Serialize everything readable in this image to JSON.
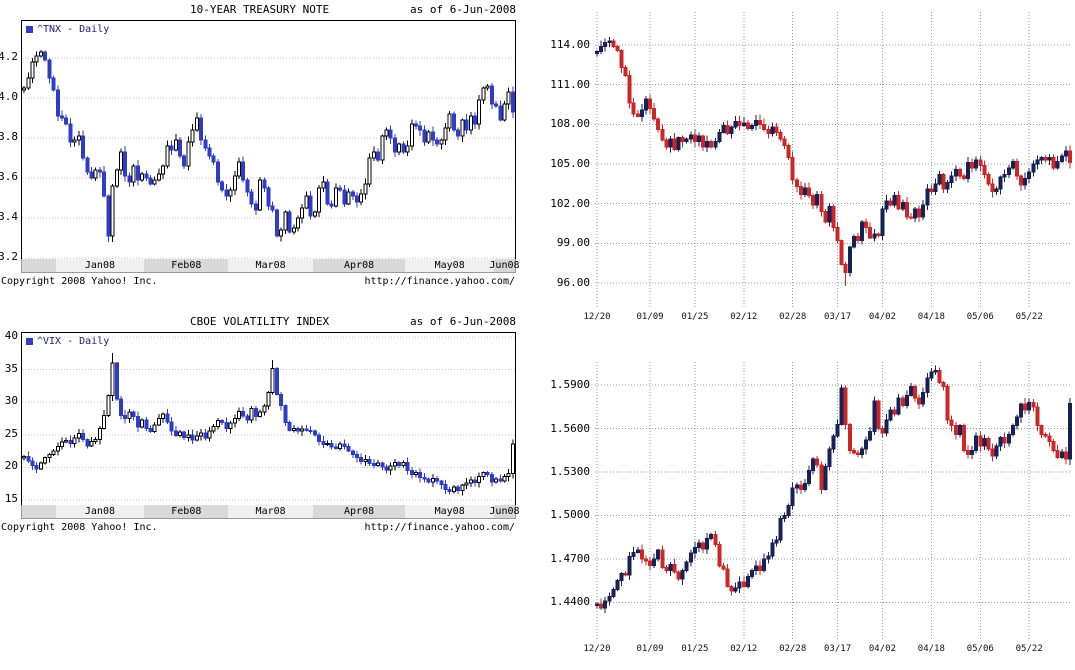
{
  "page": {
    "background": "#ffffff"
  },
  "chart_data": [
    {
      "name": "treasury-note-chart",
      "type": "candlestick",
      "title": "10-YEAR TREASURY NOTE",
      "as_of": "as of 6-Jun-2008",
      "legend": "^TNX - Daily",
      "copyright": "Copyright 2008 Yahoo! Inc.",
      "url": "http://finance.yahoo.com/",
      "hollow_up": true,
      "ylim": [
        3.19,
        4.385
      ],
      "yticks": [
        {
          "v": 4.2,
          "label": "4.2"
        },
        {
          "v": 4.0,
          "label": "4.0"
        },
        {
          "v": 3.8,
          "label": "3.8"
        },
        {
          "v": 3.6,
          "label": "3.6"
        },
        {
          "v": 3.4,
          "label": "3.4"
        },
        {
          "v": 3.2,
          "label": "3.2"
        }
      ],
      "months": [
        {
          "label": "",
          "len": 8
        },
        {
          "label": "Jan08",
          "len": 21
        },
        {
          "label": "Feb08",
          "len": 20
        },
        {
          "label": "Mar08",
          "len": 20
        },
        {
          "label": "Apr08",
          "len": 22
        },
        {
          "label": "May08",
          "len": 21
        },
        {
          "label": "Jun08",
          "len": 5
        }
      ],
      "wick": 0.03,
      "wick_overrides": [
        {
          "i": 20,
          "low": 3.28
        }
      ],
      "colors": {
        "up": "#ffffff",
        "down": "#2e3cc8",
        "grid": "#c9c9c9",
        "legend_square": "#2e3cc8"
      },
      "closes": [
        4.05,
        4.1,
        4.18,
        4.21,
        4.23,
        4.19,
        4.1,
        4.04,
        3.91,
        3.9,
        3.87,
        3.78,
        3.79,
        3.81,
        3.7,
        3.63,
        3.6,
        3.64,
        3.63,
        3.51,
        3.31,
        3.56,
        3.64,
        3.73,
        3.61,
        3.58,
        3.66,
        3.59,
        3.62,
        3.6,
        3.57,
        3.59,
        3.62,
        3.66,
        3.76,
        3.74,
        3.79,
        3.71,
        3.66,
        3.78,
        3.84,
        3.9,
        3.79,
        3.75,
        3.71,
        3.68,
        3.58,
        3.54,
        3.51,
        3.54,
        3.61,
        3.68,
        3.59,
        3.53,
        3.47,
        3.44,
        3.59,
        3.55,
        3.46,
        3.44,
        3.31,
        3.34,
        3.43,
        3.33,
        3.35,
        3.4,
        3.45,
        3.51,
        3.41,
        3.43,
        3.55,
        3.58,
        3.47,
        3.46,
        3.55,
        3.54,
        3.47,
        3.53,
        3.51,
        3.48,
        3.52,
        3.57,
        3.7,
        3.73,
        3.69,
        3.81,
        3.84,
        3.8,
        3.73,
        3.77,
        3.73,
        3.76,
        3.87,
        3.86,
        3.84,
        3.78,
        3.83,
        3.79,
        3.77,
        3.79,
        3.85,
        3.92,
        3.84,
        3.81,
        3.89,
        3.84,
        3.91,
        3.87,
        3.99,
        4.05,
        4.06,
        3.97,
        3.96,
        3.89,
        3.97,
        4.03,
        3.93
      ]
    },
    {
      "name": "vix-chart",
      "type": "candlestick",
      "title": "CBOE VOLATILITY INDEX",
      "as_of": "as of 6-Jun-2008",
      "legend": "^VIX - Daily",
      "copyright": "Copyright 2008 Yahoo! Inc.",
      "url": "http://finance.yahoo.com/",
      "hollow_up": true,
      "ylim": [
        14.1,
        40.6
      ],
      "yticks": [
        {
          "v": 40,
          "label": "40"
        },
        {
          "v": 35,
          "label": "35"
        },
        {
          "v": 30,
          "label": "30"
        },
        {
          "v": 25,
          "label": "25"
        },
        {
          "v": 20,
          "label": "20"
        },
        {
          "v": 15,
          "label": "15"
        }
      ],
      "months": [
        {
          "label": "",
          "len": 8
        },
        {
          "label": "Jan08",
          "len": 21
        },
        {
          "label": "Feb08",
          "len": 20
        },
        {
          "label": "Mar08",
          "len": 20
        },
        {
          "label": "Apr08",
          "len": 22
        },
        {
          "label": "May08",
          "len": 21
        },
        {
          "label": "Jun08",
          "len": 5
        }
      ],
      "wick": 0.8,
      "wick_overrides": [
        {
          "i": 21,
          "high": 37.5
        },
        {
          "i": 59,
          "high": 36.5
        }
      ],
      "colors": {
        "up": "#ffffff",
        "down": "#2e3cc8",
        "grid": "#c9c9c9",
        "legend_square": "#2e3cc8"
      },
      "closes": [
        21.7,
        21.0,
        20.3,
        19.8,
        20.7,
        21.5,
        22.0,
        22.5,
        23.2,
        23.9,
        24.1,
        23.7,
        24.5,
        25.2,
        24.3,
        23.3,
        24.0,
        24.3,
        26.0,
        28.0,
        31.0,
        36.0,
        30.5,
        28.0,
        27.5,
        28.5,
        27.8,
        26.2,
        27.3,
        26.0,
        25.5,
        26.5,
        27.5,
        28.2,
        27.0,
        25.6,
        24.9,
        25.4,
        24.6,
        25.0,
        24.2,
        24.8,
        25.3,
        24.5,
        25.6,
        26.3,
        27.2,
        26.9,
        26.0,
        26.8,
        27.5,
        28.6,
        27.9,
        27.3,
        29.0,
        27.8,
        28.5,
        29.4,
        31.5,
        35.2,
        31.2,
        29.5,
        26.9,
        25.7,
        26.0,
        25.6,
        25.9,
        25.7,
        25.6,
        25.0,
        24.0,
        23.5,
        23.7,
        23.1,
        22.9,
        23.6,
        23.2,
        22.5,
        22.0,
        21.5,
        20.9,
        21.2,
        20.6,
        20.3,
        20.7,
        20.1,
        19.6,
        20.2,
        20.8,
        20.3,
        20.8,
        19.5,
        18.9,
        19.2,
        18.5,
        18.2,
        17.8,
        18.3,
        17.9,
        17.4,
        16.6,
        16.3,
        17.0,
        16.5,
        17.3,
        17.6,
        18.1,
        17.7,
        18.6,
        19.2,
        18.9,
        17.8,
        18.2,
        17.9,
        18.6,
        19.1,
        23.6
      ]
    },
    {
      "name": "right-top-candlestick-chart",
      "type": "candlestick",
      "hollow_up": false,
      "vgrid": true,
      "ylim": [
        94.1,
        116.5
      ],
      "yticks": [
        {
          "v": 114,
          "label": "114.00"
        },
        {
          "v": 111,
          "label": "111.00"
        },
        {
          "v": 108,
          "label": "108.00"
        },
        {
          "v": 105,
          "label": "105.00"
        },
        {
          "v": 102,
          "label": "102.00"
        },
        {
          "v": 99,
          "label": "99.00"
        },
        {
          "v": 96,
          "label": "96.00"
        }
      ],
      "xticks": [
        {
          "i": 0,
          "label": "12/20"
        },
        {
          "i": 13,
          "label": "01/09"
        },
        {
          "i": 24,
          "label": "01/25"
        },
        {
          "i": 36,
          "label": "02/12"
        },
        {
          "i": 48,
          "label": "02/28"
        },
        {
          "i": 59,
          "label": "03/17"
        },
        {
          "i": 70,
          "label": "04/02"
        },
        {
          "i": 82,
          "label": "04/18"
        },
        {
          "i": 94,
          "label": "05/06"
        },
        {
          "i": 106,
          "label": "05/22"
        }
      ],
      "wick": 0.45,
      "wick_overrides": [
        {
          "i": 61,
          "low": 95.75
        }
      ],
      "colors": {
        "up": "#16215a",
        "down": "#cc2727",
        "grid": "#9a9a9a"
      },
      "closes": [
        113.5,
        113.9,
        114.2,
        114.3,
        113.9,
        113.6,
        112.3,
        111.7,
        109.6,
        108.8,
        108.6,
        109.1,
        109.9,
        109.2,
        108.4,
        107.6,
        106.8,
        106.3,
        106.9,
        106.1,
        107.0,
        106.7,
        106.9,
        107.2,
        106.7,
        107.1,
        106.3,
        106.7,
        106.3,
        106.7,
        107.4,
        107.9,
        107.3,
        107.8,
        108.2,
        107.9,
        108.1,
        107.7,
        107.9,
        108.3,
        108.0,
        107.6,
        107.3,
        107.8,
        107.4,
        106.9,
        106.4,
        105.5,
        103.8,
        103.3,
        102.7,
        103.2,
        102.6,
        101.9,
        102.7,
        101.4,
        100.6,
        101.8,
        100.2,
        99.2,
        97.4,
        96.8,
        98.7,
        99.5,
        99.2,
        100.6,
        100.2,
        99.4,
        99.7,
        99.6,
        101.6,
        102.2,
        101.9,
        102.6,
        101.6,
        102.1,
        101.0,
        100.9,
        101.6,
        101.0,
        101.9,
        103.1,
        102.9,
        103.5,
        104.2,
        103.1,
        103.6,
        104.1,
        104.6,
        104.1,
        103.9,
        105.1,
        104.7,
        105.3,
        104.9,
        104.2,
        103.5,
        102.9,
        103.1,
        104.0,
        104.2,
        104.7,
        105.2,
        104.1,
        103.4,
        103.9,
        104.4,
        105.0,
        105.3,
        105.5,
        105.3,
        105.5,
        104.7,
        105.2,
        105.6,
        106.0,
        105.1
      ]
    },
    {
      "name": "right-bottom-candlestick-chart",
      "type": "candlestick",
      "hollow_up": false,
      "vgrid": true,
      "ylim": [
        1.414,
        1.606
      ],
      "yticks": [
        {
          "v": 1.59,
          "label": "1.5900"
        },
        {
          "v": 1.56,
          "label": "1.5600"
        },
        {
          "v": 1.53,
          "label": "1.5300"
        },
        {
          "v": 1.5,
          "label": "1.5000"
        },
        {
          "v": 1.47,
          "label": "1.4700"
        },
        {
          "v": 1.44,
          "label": "1.4400"
        }
      ],
      "xticks": [
        {
          "i": 0,
          "label": "12/20"
        },
        {
          "i": 13,
          "label": "01/09"
        },
        {
          "i": 24,
          "label": "01/25"
        },
        {
          "i": 36,
          "label": "02/12"
        },
        {
          "i": 48,
          "label": "02/28"
        },
        {
          "i": 59,
          "label": "03/17"
        },
        {
          "i": 70,
          "label": "04/02"
        },
        {
          "i": 82,
          "label": "04/18"
        },
        {
          "i": 94,
          "label": "05/06"
        },
        {
          "i": 106,
          "label": "05/22"
        }
      ],
      "wick": 0.004,
      "wick_overrides": [
        {
          "i": 60,
          "high": 1.5905
        }
      ],
      "colors": {
        "up": "#16215a",
        "down": "#cc2727",
        "grid": "#9a9a9a"
      },
      "closes": [
        1.439,
        1.436,
        1.441,
        1.444,
        1.449,
        1.455,
        1.46,
        1.459,
        1.4715,
        1.4745,
        1.476,
        1.47,
        1.4685,
        1.4655,
        1.47,
        1.476,
        1.464,
        1.462,
        1.466,
        1.461,
        1.456,
        1.462,
        1.468,
        1.474,
        1.478,
        1.481,
        1.477,
        1.484,
        1.487,
        1.48,
        1.465,
        1.463,
        1.451,
        1.448,
        1.45,
        1.454,
        1.451,
        1.458,
        1.462,
        1.465,
        1.462,
        1.47,
        1.472,
        1.481,
        1.483,
        1.498,
        1.5,
        1.507,
        1.519,
        1.521,
        1.518,
        1.522,
        1.531,
        1.539,
        1.535,
        1.518,
        1.534,
        1.546,
        1.555,
        1.563,
        1.588,
        1.563,
        1.545,
        1.543,
        1.542,
        1.546,
        1.552,
        1.558,
        1.579,
        1.56,
        1.557,
        1.566,
        1.573,
        1.57,
        1.581,
        1.576,
        1.583,
        1.589,
        1.581,
        1.577,
        1.585,
        1.595,
        1.599,
        1.6,
        1.592,
        1.589,
        1.566,
        1.562,
        1.556,
        1.562,
        1.545,
        1.542,
        1.545,
        1.555,
        1.548,
        1.553,
        1.546,
        1.541,
        1.548,
        1.554,
        1.55,
        1.556,
        1.562,
        1.568,
        1.577,
        1.573,
        1.578,
        1.575,
        1.562,
        1.556,
        1.555,
        1.551,
        1.545,
        1.54,
        1.544,
        1.539,
        1.5775
      ]
    }
  ]
}
